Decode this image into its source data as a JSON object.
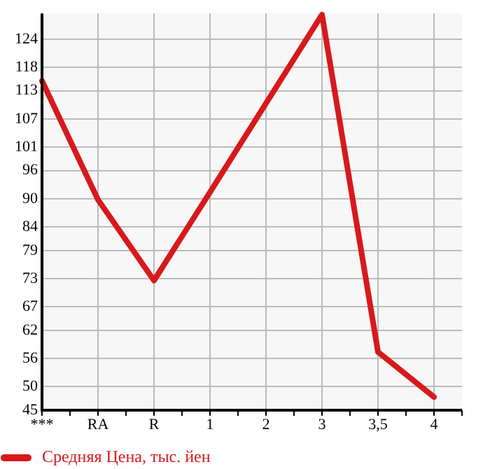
{
  "chart_data": {
    "type": "line",
    "categories": [
      "***",
      "RA",
      "R",
      "1",
      "2",
      "3",
      "3,5",
      "4"
    ],
    "series": [
      {
        "name": "Средняя Цена, тыс. йен",
        "color": "#d7191c",
        "values": [
          115.1,
          89.8,
          72.6,
          91.4,
          110.3,
          129.2,
          57.4,
          47.8
        ]
      }
    ],
    "ylim": [
      45,
      129.45
    ],
    "yticks": [
      45,
      50,
      56,
      62,
      67,
      73,
      79,
      84,
      90,
      96,
      101,
      107,
      113,
      118,
      124
    ],
    "grid": true,
    "legend": "bottom left",
    "marker": "none",
    "line_style": "solid"
  }
}
